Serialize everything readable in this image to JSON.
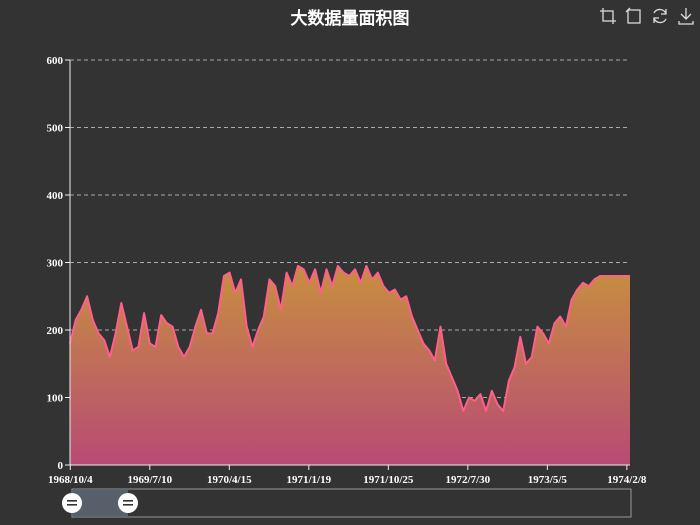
{
  "chart_data": {
    "type": "area",
    "title": "大数据量面积图",
    "ylim": [
      0,
      600
    ],
    "y_ticks": [
      0,
      100,
      200,
      300,
      400,
      500,
      600
    ],
    "x_range": [
      "1968/10/3",
      "1974/2/19"
    ],
    "x_tick_labels": [
      "1968/10/4",
      "1969/7/10",
      "1970/4/15",
      "1971/1/19",
      "1971/10/25",
      "1972/7/30",
      "1973/5/5",
      "1974/2/8"
    ],
    "grid": true,
    "series": [
      {
        "x": [
          "1968/10/3",
          "1968/10/23",
          "1968/11/12",
          "1968/12/2",
          "1968/12/22",
          "1969/1/11",
          "1969/1/31",
          "1969/2/20",
          "1969/3/12",
          "1969/4/1",
          "1969/4/21",
          "1969/5/11",
          "1969/5/31",
          "1969/6/20",
          "1969/7/10",
          "1969/7/30",
          "1969/8/19",
          "1969/9/8",
          "1969/9/28",
          "1969/10/18",
          "1969/11/7",
          "1969/11/27",
          "1969/12/17",
          "1970/1/6",
          "1970/1/26",
          "1970/2/15",
          "1970/3/7",
          "1970/3/27",
          "1970/4/16",
          "1970/5/6",
          "1970/5/26",
          "1970/6/15",
          "1970/7/5",
          "1970/7/25",
          "1970/8/14",
          "1970/9/3",
          "1970/9/23",
          "1970/10/13",
          "1970/11/2",
          "1970/11/22",
          "1970/12/12",
          "1971/1/1",
          "1971/1/21",
          "1971/2/10",
          "1971/3/2",
          "1971/3/22",
          "1971/4/11",
          "1971/5/1",
          "1971/5/21",
          "1971/6/10",
          "1971/6/30",
          "1971/7/20",
          "1971/8/9",
          "1971/8/29",
          "1971/9/18",
          "1971/10/8",
          "1971/10/28",
          "1971/11/17",
          "1971/12/7",
          "1971/12/27",
          "1972/1/16",
          "1972/2/5",
          "1972/2/25",
          "1972/3/16",
          "1972/4/5",
          "1972/4/25",
          "1972/5/15",
          "1972/6/4",
          "1972/6/24",
          "1972/7/14",
          "1972/8/3",
          "1972/8/23",
          "1972/9/12",
          "1972/10/2",
          "1972/10/22",
          "1972/11/11",
          "1972/12/1",
          "1972/12/21",
          "1973/1/10",
          "1973/1/30",
          "1973/2/19",
          "1973/3/11",
          "1973/3/31",
          "1973/4/20",
          "1973/5/10",
          "1973/5/30",
          "1973/6/19",
          "1973/7/9",
          "1973/7/29",
          "1973/8/18",
          "1973/9/7",
          "1973/9/27",
          "1973/10/17",
          "1973/11/6",
          "1973/11/26",
          "1973/12/16",
          "1974/1/5",
          "1974/1/25",
          "1974/2/14",
          "1974/2/19"
        ],
        "values": [
          180,
          215,
          230,
          250,
          215,
          195,
          185,
          160,
          195,
          240,
          205,
          170,
          175,
          225,
          180,
          175,
          222,
          210,
          205,
          175,
          160,
          175,
          205,
          230,
          195,
          195,
          225,
          280,
          285,
          255,
          275,
          205,
          175,
          200,
          220,
          275,
          265,
          230,
          285,
          265,
          295,
          290,
          270,
          290,
          255,
          290,
          265,
          295,
          285,
          280,
          290,
          270,
          295,
          275,
          285,
          265,
          255,
          260,
          245,
          250,
          220,
          200,
          180,
          170,
          155,
          205,
          150,
          130,
          110,
          80,
          100,
          95,
          105,
          80,
          110,
          90,
          80,
          125,
          145,
          190,
          150,
          160,
          205,
          195,
          180,
          210,
          220,
          205,
          245,
          260,
          270,
          265,
          275,
          280,
          280,
          280,
          280,
          280,
          280,
          280
        ]
      }
    ]
  }
}
